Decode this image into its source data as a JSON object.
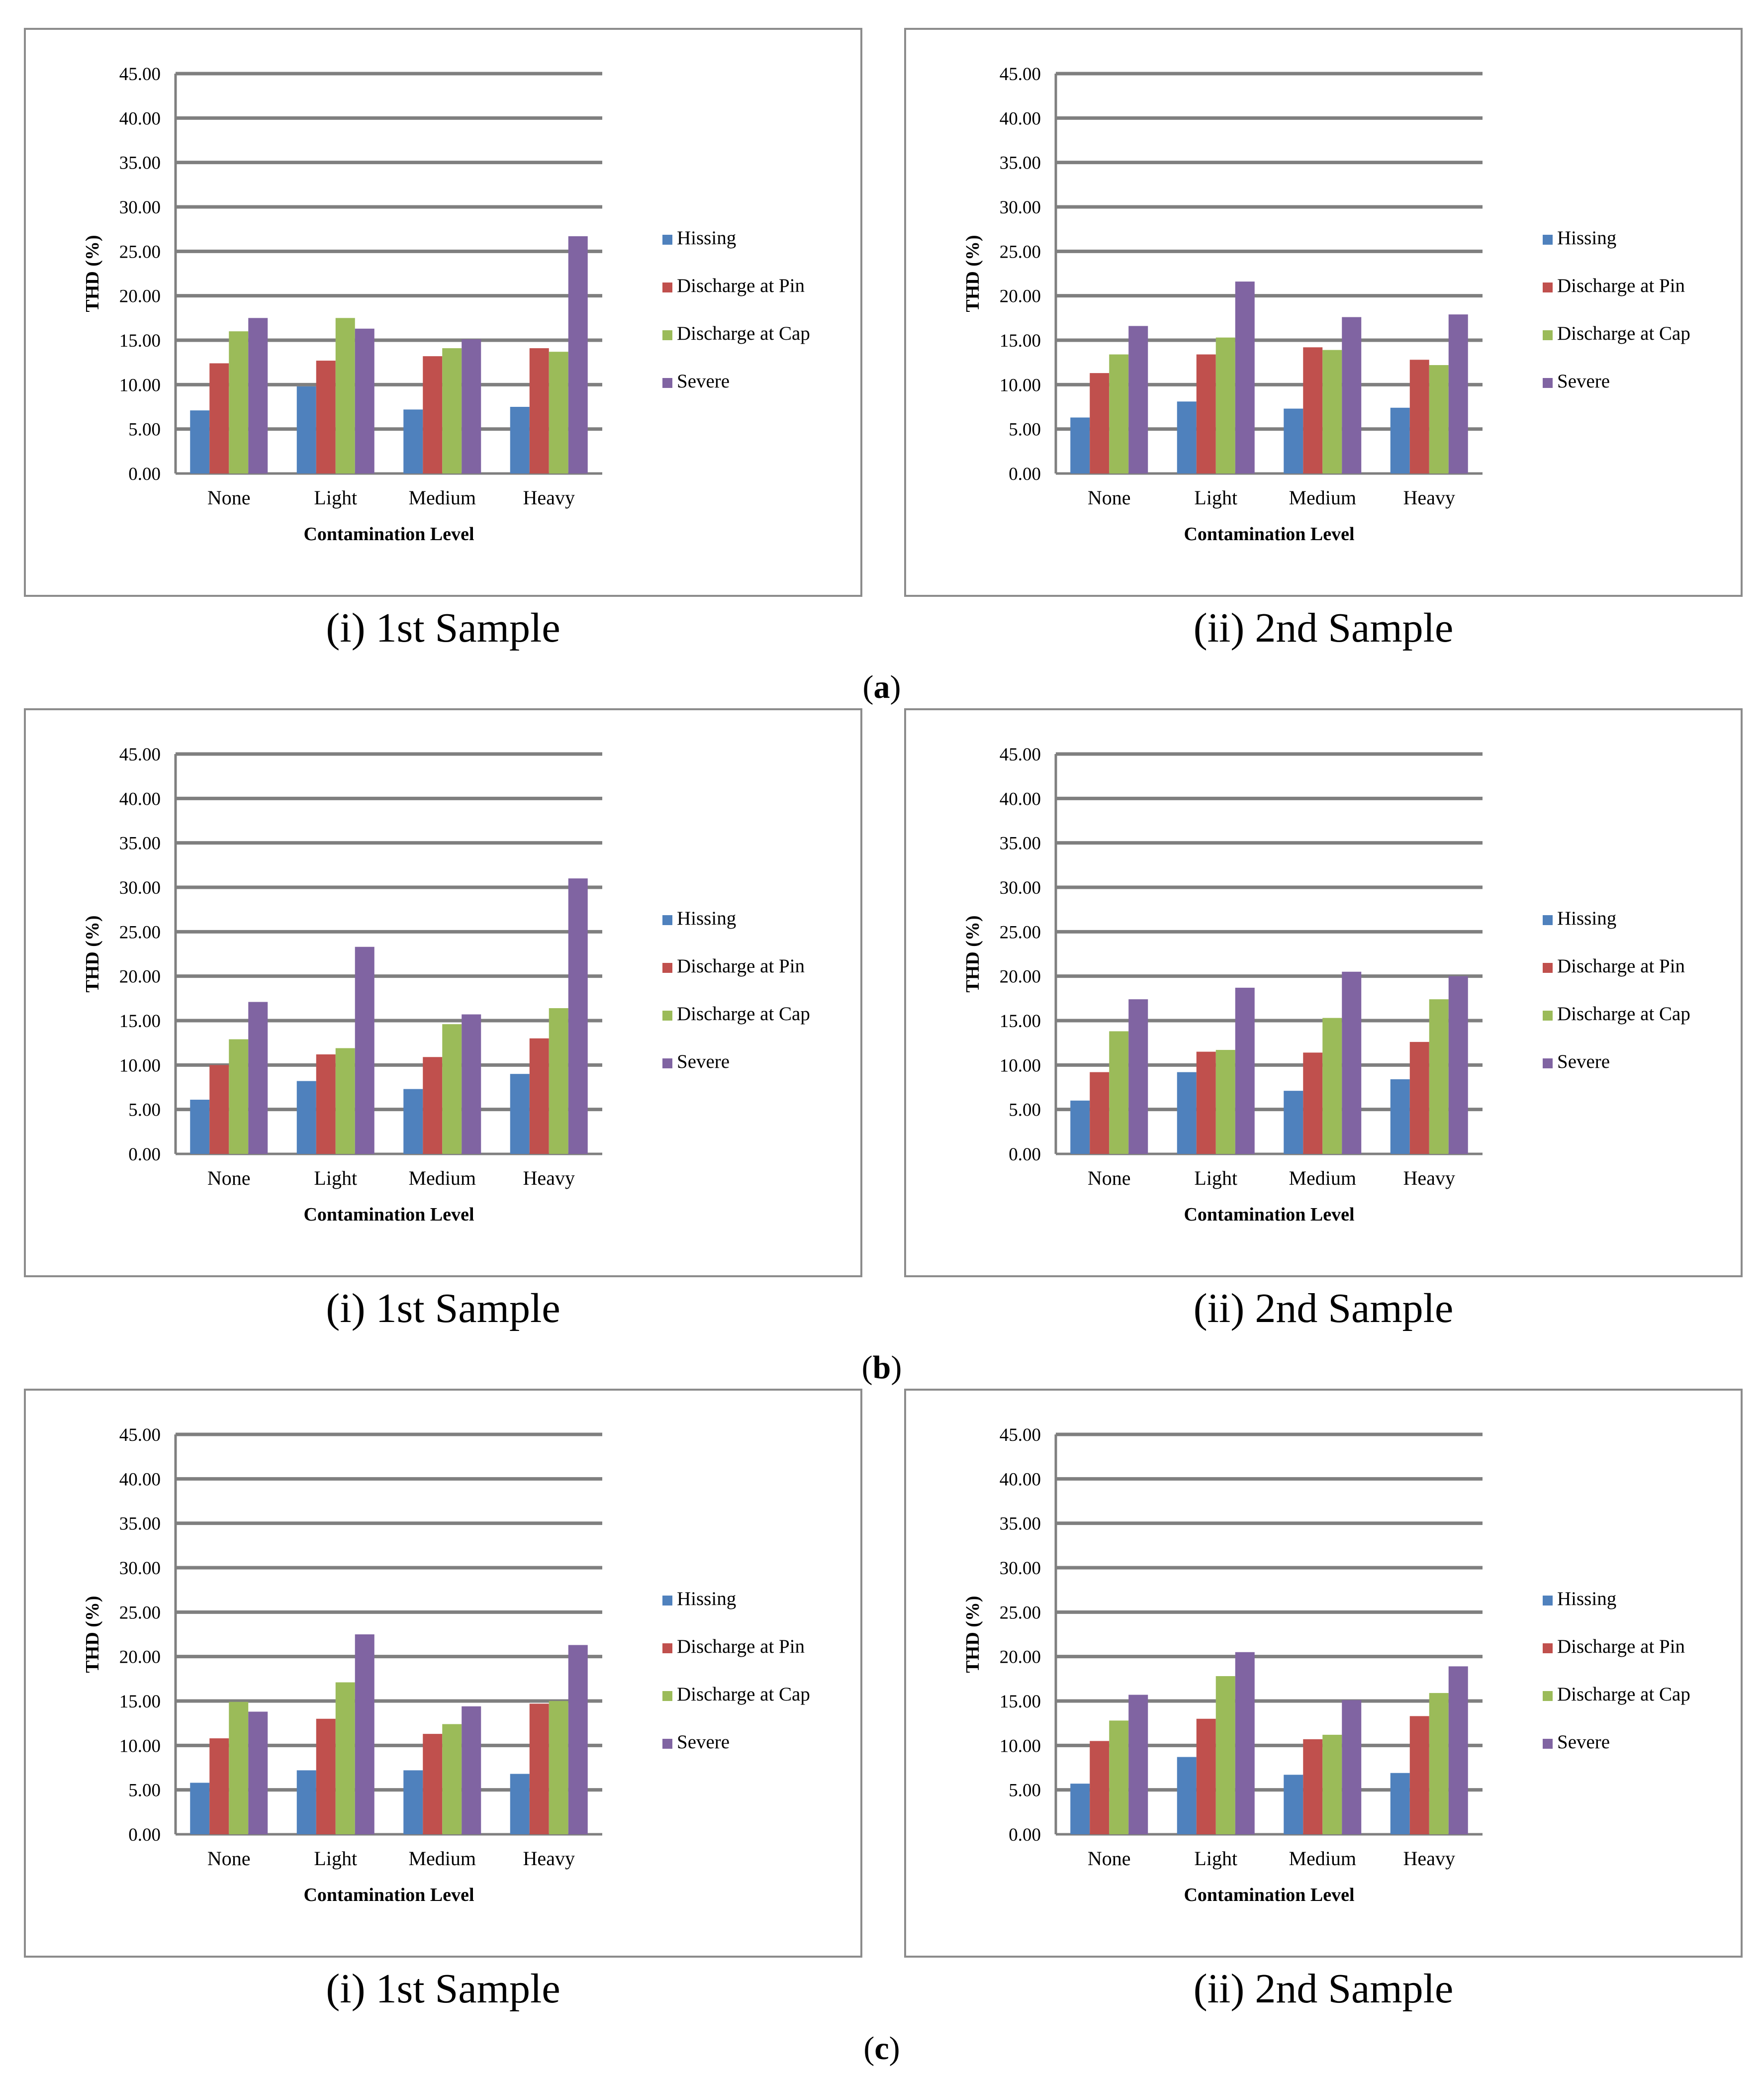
{
  "chart_data": [
    {
      "type": "bar",
      "panel": "a",
      "caption": "(i) 1st Sample",
      "xlabel": "Contamination Level",
      "ylabel": "THD (%)",
      "ylim": [
        0,
        45
      ],
      "yticks": [
        "0.00",
        "5.00",
        "10.00",
        "15.00",
        "20.00",
        "25.00",
        "30.00",
        "35.00",
        "40.00",
        "45.00"
      ],
      "categories": [
        "None",
        "Light",
        "Medium",
        "Heavy"
      ],
      "series": [
        {
          "name": "Hissing",
          "color": "#4f81bd",
          "values": [
            7.1,
            9.8,
            7.2,
            7.5
          ]
        },
        {
          "name": "Discharge at Pin",
          "color": "#c0504d",
          "values": [
            12.4,
            12.7,
            13.2,
            14.1
          ]
        },
        {
          "name": "Discharge at Cap",
          "color": "#9bbb59",
          "values": [
            16.0,
            17.5,
            14.1,
            13.7
          ]
        },
        {
          "name": "Severe",
          "color": "#8064a2",
          "values": [
            17.5,
            16.3,
            15.1,
            26.7
          ]
        }
      ],
      "legend": "right"
    },
    {
      "type": "bar",
      "panel": "a",
      "caption": "(ii) 2nd Sample",
      "xlabel": "Contamination Level",
      "ylabel": "THD (%)",
      "ylim": [
        0,
        45
      ],
      "yticks": [
        "0.00",
        "5.00",
        "10.00",
        "15.00",
        "20.00",
        "25.00",
        "30.00",
        "35.00",
        "40.00",
        "45.00"
      ],
      "categories": [
        "None",
        "Light",
        "Medium",
        "Heavy"
      ],
      "series": [
        {
          "name": "Hissing",
          "color": "#4f81bd",
          "values": [
            6.3,
            8.1,
            7.3,
            7.4
          ]
        },
        {
          "name": "Discharge at Pin",
          "color": "#c0504d",
          "values": [
            11.3,
            13.4,
            14.2,
            12.8
          ]
        },
        {
          "name": "Discharge at Cap",
          "color": "#9bbb59",
          "values": [
            13.4,
            15.3,
            13.9,
            12.2
          ]
        },
        {
          "name": "Severe",
          "color": "#8064a2",
          "values": [
            16.6,
            21.6,
            17.6,
            17.9
          ]
        }
      ],
      "legend": "right"
    },
    {
      "type": "bar",
      "panel": "b",
      "caption": "(i) 1st Sample",
      "xlabel": "Contamination Level",
      "ylabel": "THD (%)",
      "ylim": [
        0,
        45
      ],
      "yticks": [
        "0.00",
        "5.00",
        "10.00",
        "15.00",
        "20.00",
        "25.00",
        "30.00",
        "35.00",
        "40.00",
        "45.00"
      ],
      "categories": [
        "None",
        "Light",
        "Medium",
        "Heavy"
      ],
      "series": [
        {
          "name": "Hissing",
          "color": "#4f81bd",
          "values": [
            6.1,
            8.2,
            7.3,
            9.0
          ]
        },
        {
          "name": "Discharge at Pin",
          "color": "#c0504d",
          "values": [
            10.0,
            11.2,
            10.9,
            13.0
          ]
        },
        {
          "name": "Discharge at Cap",
          "color": "#9bbb59",
          "values": [
            12.9,
            11.9,
            14.6,
            16.4
          ]
        },
        {
          "name": "Severe",
          "color": "#8064a2",
          "values": [
            17.1,
            23.3,
            15.7,
            31.0
          ]
        }
      ],
      "legend": "right"
    },
    {
      "type": "bar",
      "panel": "b",
      "caption": "(ii) 2nd Sample",
      "xlabel": "Contamination Level",
      "ylabel": "THD (%)",
      "ylim": [
        0,
        45
      ],
      "yticks": [
        "0.00",
        "5.00",
        "10.00",
        "15.00",
        "20.00",
        "25.00",
        "30.00",
        "35.00",
        "40.00",
        "45.00"
      ],
      "categories": [
        "None",
        "Light",
        "Medium",
        "Heavy"
      ],
      "series": [
        {
          "name": "Hissing",
          "color": "#4f81bd",
          "values": [
            6.0,
            9.2,
            7.1,
            8.4
          ]
        },
        {
          "name": "Discharge at Pin",
          "color": "#c0504d",
          "values": [
            9.2,
            11.5,
            11.4,
            12.6
          ]
        },
        {
          "name": "Discharge at Cap",
          "color": "#9bbb59",
          "values": [
            13.8,
            11.7,
            15.3,
            17.4
          ]
        },
        {
          "name": "Severe",
          "color": "#8064a2",
          "values": [
            17.4,
            18.7,
            20.5,
            20.0
          ]
        }
      ],
      "legend": "right"
    },
    {
      "type": "bar",
      "panel": "c",
      "caption": "(i) 1st Sample",
      "xlabel": "Contamination Level",
      "ylabel": "THD (%)",
      "ylim": [
        0,
        45
      ],
      "yticks": [
        "0.00",
        "5.00",
        "10.00",
        "15.00",
        "20.00",
        "25.00",
        "30.00",
        "35.00",
        "40.00",
        "45.00"
      ],
      "categories": [
        "None",
        "Light",
        "Medium",
        "Heavy"
      ],
      "series": [
        {
          "name": "Hissing",
          "color": "#4f81bd",
          "values": [
            5.8,
            7.2,
            7.2,
            6.8
          ]
        },
        {
          "name": "Discharge at Pin",
          "color": "#c0504d",
          "values": [
            10.8,
            13.0,
            11.3,
            14.7
          ]
        },
        {
          "name": "Discharge at Cap",
          "color": "#9bbb59",
          "values": [
            14.9,
            17.1,
            12.4,
            15.0
          ]
        },
        {
          "name": "Severe",
          "color": "#8064a2",
          "values": [
            13.8,
            22.5,
            14.4,
            21.3
          ]
        }
      ],
      "legend": "right"
    },
    {
      "type": "bar",
      "panel": "c",
      "caption": "(ii) 2nd Sample",
      "xlabel": "Contamination Level",
      "ylabel": "THD (%)",
      "ylim": [
        0,
        45
      ],
      "yticks": [
        "0.00",
        "5.00",
        "10.00",
        "15.00",
        "20.00",
        "25.00",
        "30.00",
        "35.00",
        "40.00",
        "45.00"
      ],
      "categories": [
        "None",
        "Light",
        "Medium",
        "Heavy"
      ],
      "series": [
        {
          "name": "Hissing",
          "color": "#4f81bd",
          "values": [
            5.7,
            8.7,
            6.7,
            6.9
          ]
        },
        {
          "name": "Discharge at Pin",
          "color": "#c0504d",
          "values": [
            10.5,
            13.0,
            10.7,
            13.3
          ]
        },
        {
          "name": "Discharge at Cap",
          "color": "#9bbb59",
          "values": [
            12.8,
            17.8,
            11.2,
            15.9
          ]
        },
        {
          "name": "Severe",
          "color": "#8064a2",
          "values": [
            15.7,
            20.5,
            15.1,
            18.9
          ]
        }
      ],
      "legend": "right"
    }
  ],
  "panel_labels": [
    {
      "open": "(",
      "letter": "a",
      "close": ")"
    },
    {
      "open": "(",
      "letter": "b",
      "close": ")"
    },
    {
      "open": "(",
      "letter": "c",
      "close": ")"
    }
  ]
}
